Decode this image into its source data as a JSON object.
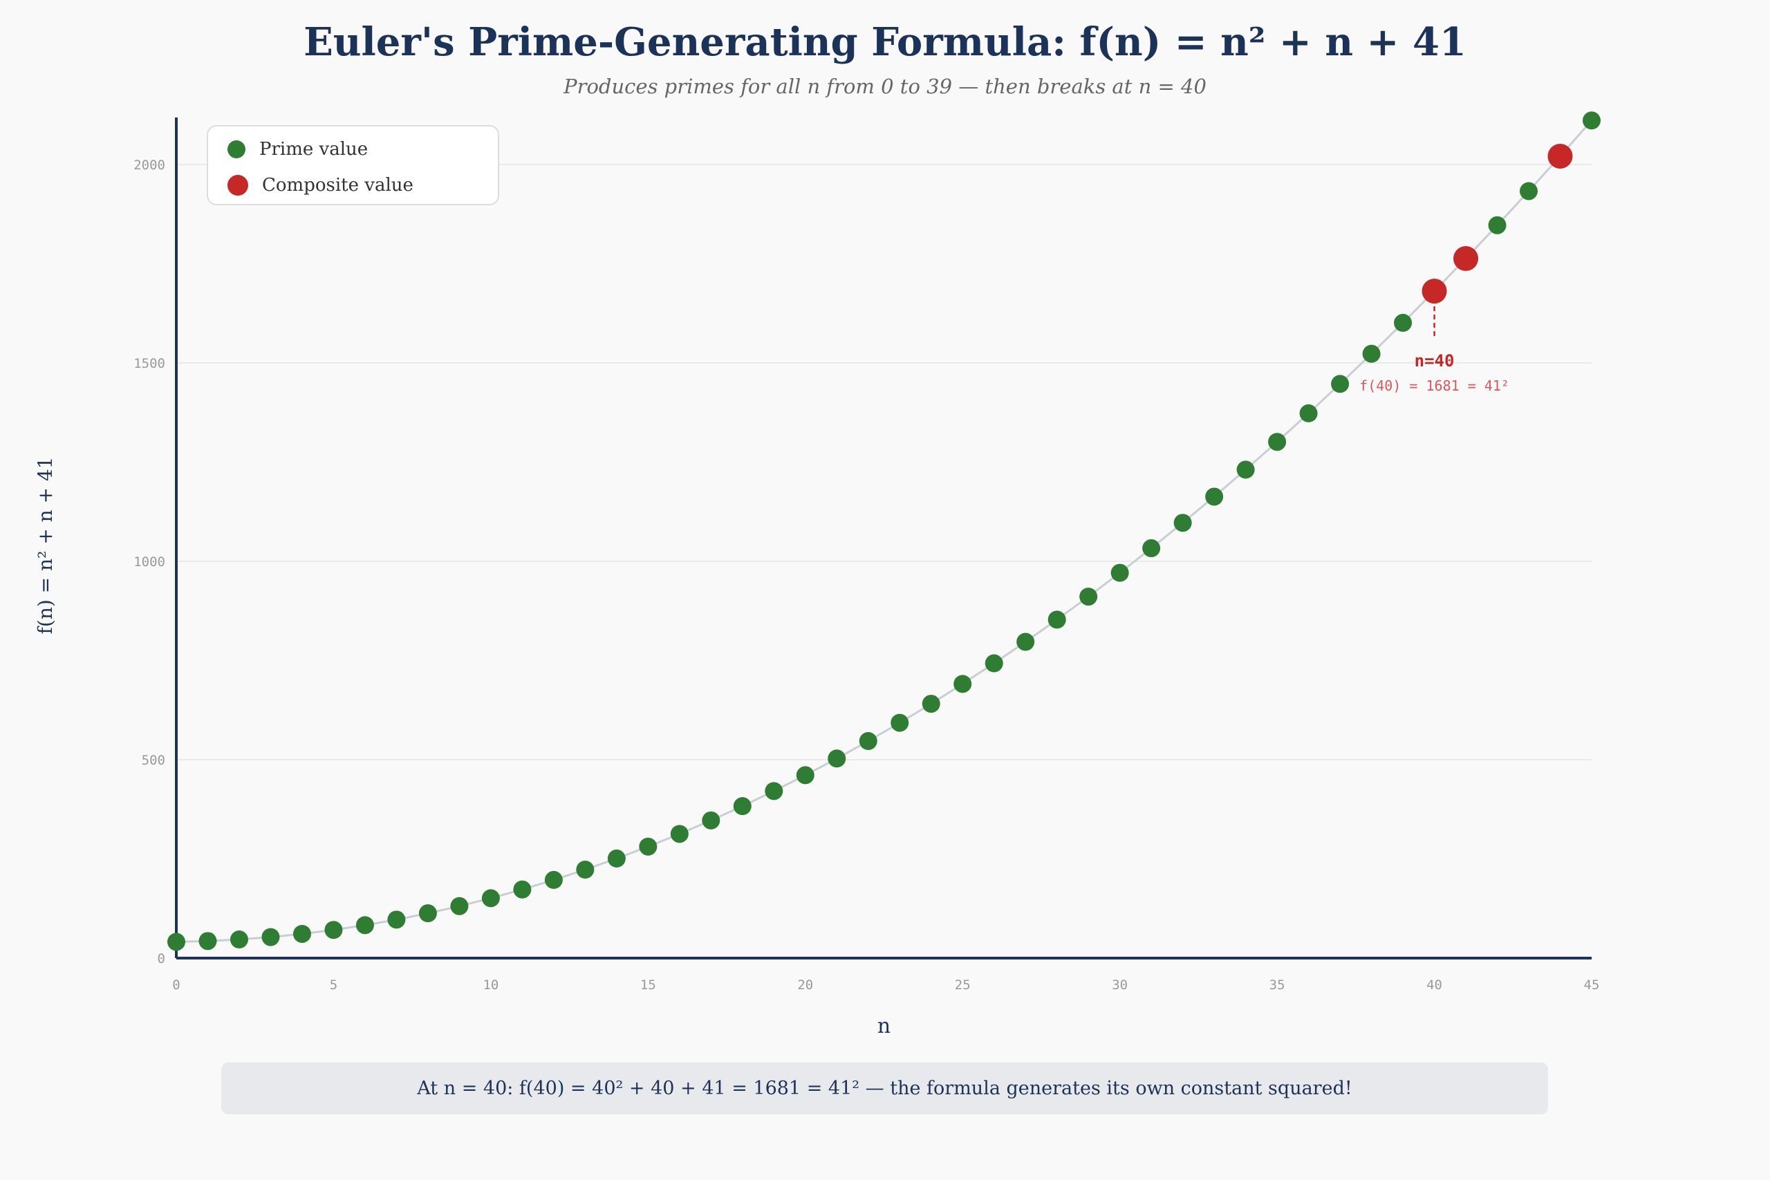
{
  "title": "Euler's Prime-Generating Formula: f(n) = n² + n + 41",
  "subtitle": "Produces primes for all n from 0 to 39 — then breaks at n = 40",
  "footer_note": "At n = 40: f(40) = 40² + 40 + 41 = 1681 = 41² — the formula generates its own constant squared!",
  "legend": [
    {
      "label": "Prime value",
      "color": "#2e7d32"
    },
    {
      "label": "Composite value",
      "color": "#c62828"
    }
  ],
  "colors": {
    "prime": "#2e7d32",
    "composite": "#c62828",
    "line": "#c8ced6",
    "axis": "#1b3358",
    "grid": "#e6e6e6"
  },
  "chart_data": {
    "type": "scatter",
    "title": "Euler's Prime-Generating Formula: f(n) = n² + n + 41",
    "xlabel": "n",
    "ylabel": "f(n) = n² + n + 41",
    "xlim": [
      0,
      45
    ],
    "ylim": [
      0,
      2111
    ],
    "xticks": [
      0,
      5,
      10,
      15,
      20,
      25,
      30,
      35,
      40,
      45
    ],
    "yticks": [
      0,
      500,
      1000,
      1500,
      2000
    ],
    "grid": "horizontal",
    "legend_position": "top-left",
    "x": [
      0,
      1,
      2,
      3,
      4,
      5,
      6,
      7,
      8,
      9,
      10,
      11,
      12,
      13,
      14,
      15,
      16,
      17,
      18,
      19,
      20,
      21,
      22,
      23,
      24,
      25,
      26,
      27,
      28,
      29,
      30,
      31,
      32,
      33,
      34,
      35,
      36,
      37,
      38,
      39,
      40,
      41,
      42,
      43,
      44,
      45
    ],
    "y": [
      41,
      43,
      47,
      53,
      61,
      71,
      83,
      97,
      113,
      131,
      151,
      173,
      197,
      223,
      251,
      281,
      313,
      347,
      383,
      421,
      461,
      503,
      547,
      593,
      641,
      691,
      743,
      797,
      853,
      911,
      971,
      1033,
      1097,
      1163,
      1231,
      1301,
      1373,
      1447,
      1523,
      1601,
      1681,
      1763,
      1847,
      1933,
      2021,
      2111
    ],
    "composite_n": [
      40,
      41,
      44
    ],
    "annotation": {
      "n": 40,
      "label": "n=40",
      "detail": "f(40) = 1681 = 41²"
    }
  }
}
